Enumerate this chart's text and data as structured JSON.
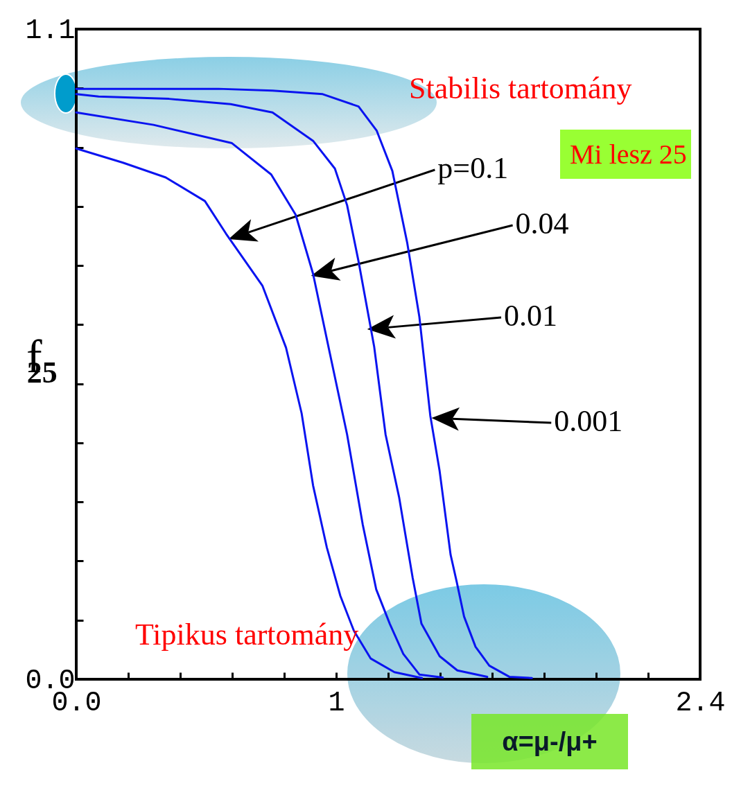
{
  "chart_data": {
    "type": "line",
    "xlabel": "α=μ-/μ+",
    "ylabel": "f$_{25}$",
    "xlim": [
      0,
      2.4
    ],
    "ylim": [
      0,
      1.1
    ],
    "xticks": [
      {
        "value": 0,
        "label": "0.0"
      },
      {
        "value": 0.2,
        "label": null
      },
      {
        "value": 0.4,
        "label": null
      },
      {
        "value": 0.6,
        "label": null
      },
      {
        "value": 0.8,
        "label": null
      },
      {
        "value": 1,
        "label": "1"
      },
      {
        "value": 1.2,
        "label": null
      },
      {
        "value": 1.4,
        "label": null
      },
      {
        "value": 1.6,
        "label": null
      },
      {
        "value": 1.8,
        "label": null
      },
      {
        "value": 2,
        "label": null
      },
      {
        "value": 2.2,
        "label": null
      },
      {
        "value": 2.4,
        "label": "2.4"
      }
    ],
    "yticks": [
      {
        "value": 0,
        "label": "0.0"
      },
      {
        "value": 0.1,
        "label": null
      },
      {
        "value": 0.2,
        "label": null
      },
      {
        "value": 0.3,
        "label": null
      },
      {
        "value": 0.4,
        "label": null
      },
      {
        "value": 0.5,
        "label": null
      },
      {
        "value": 0.6,
        "label": null
      },
      {
        "value": 0.7,
        "label": null
      },
      {
        "value": 0.8,
        "label": null
      },
      {
        "value": 0.9,
        "label": null
      },
      {
        "value": 1,
        "label": null
      },
      {
        "value": 1.1,
        "label": "1.1"
      }
    ],
    "grid": false,
    "legend": false,
    "marker": "none",
    "line_style": "solid",
    "series": [
      {
        "color": "#0a14f0",
        "x": [
          0,
          0.18,
          0.344,
          0.495,
          0.576,
          0.716,
          0.807,
          0.867,
          0.911,
          0.964,
          1.016,
          1.068,
          1.133,
          1.224,
          1.33
        ],
        "values": [
          0.898,
          0.874,
          0.849,
          0.809,
          0.754,
          0.666,
          0.561,
          0.45,
          0.328,
          0.223,
          0.141,
          0.082,
          0.035,
          0.012,
          0.002
        ]
      },
      {
        "color": "#0a14f0",
        "x": [
          0,
          0.297,
          0.599,
          0.75,
          0.844,
          0.911,
          0.971,
          1.042,
          1.102,
          1.154,
          1.206,
          1.258,
          1.32,
          1.41
        ],
        "values": [
          0.959,
          0.938,
          0.907,
          0.854,
          0.786,
          0.686,
          0.561,
          0.414,
          0.262,
          0.152,
          0.094,
          0.043,
          0.008,
          0.003
        ]
      },
      {
        "color": "#0a14f0",
        "x": [
          0,
          0.086,
          0.357,
          0.594,
          0.755,
          0.911,
          0.995,
          1.042,
          1.086,
          1.146,
          1.19,
          1.242,
          1.294,
          1.328,
          1.398,
          1.466,
          1.581
        ],
        "values": [
          0.99,
          0.986,
          0.982,
          0.973,
          0.959,
          0.911,
          0.864,
          0.802,
          0.707,
          0.563,
          0.414,
          0.308,
          0.172,
          0.094,
          0.039,
          0.015,
          0.004
        ]
      },
      {
        "color": "#0a14f0",
        "x": [
          0,
          0.547,
          0.755,
          0.948,
          1.086,
          1.156,
          1.216,
          1.273,
          1.32,
          1.362,
          1.398,
          1.44,
          1.464,
          1.492,
          1.536,
          1.589,
          1.667,
          1.753
        ],
        "values": [
          0.999,
          0.999,
          0.996,
          0.99,
          0.969,
          0.928,
          0.86,
          0.739,
          0.613,
          0.446,
          0.352,
          0.211,
          0.164,
          0.106,
          0.055,
          0.023,
          0.004,
          0.002
        ]
      }
    ],
    "annotations": [
      "p=0.1",
      "0.04",
      "0.01",
      "0.001",
      "Stabilis tartomány",
      "Mi lesz 25",
      "Tipikus tartomány"
    ]
  }
}
